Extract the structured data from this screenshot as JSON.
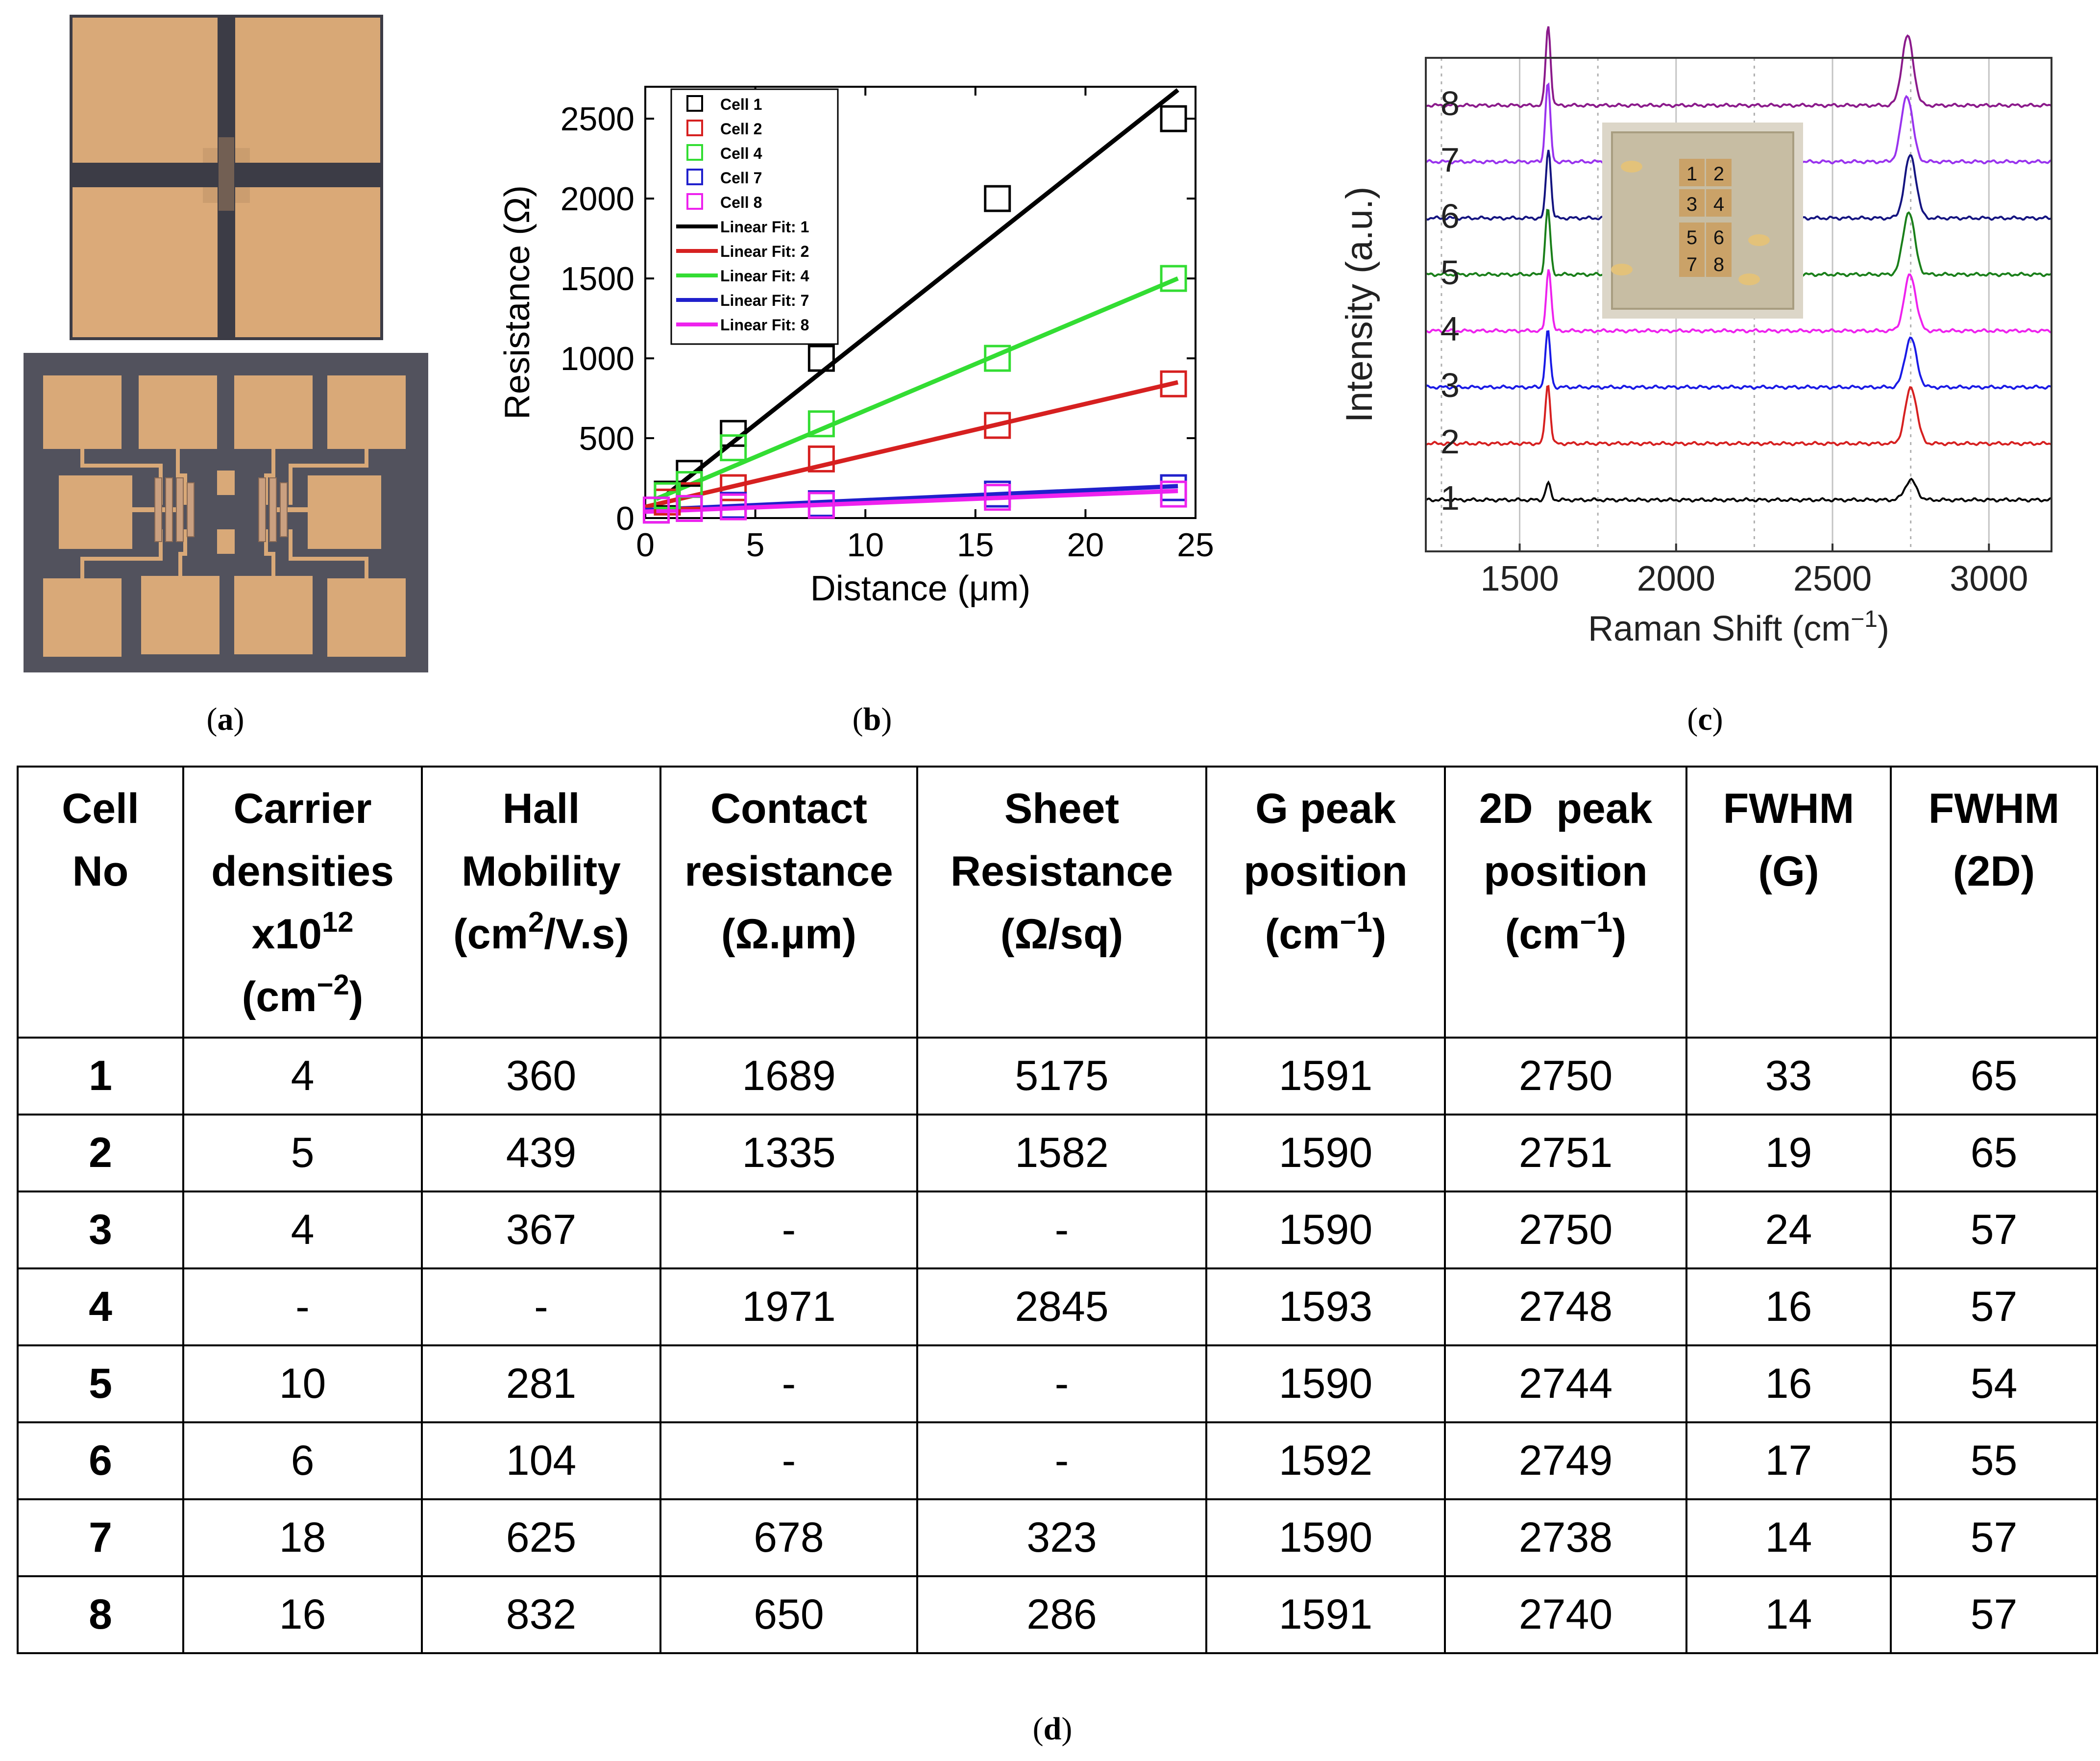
{
  "panels": {
    "a": {
      "label_paren_open": "(",
      "label_letter": "a",
      "label_paren_close": ")"
    },
    "b": {
      "label_paren_open": "(",
      "label_letter": "b",
      "label_paren_close": ")"
    },
    "c": {
      "label_paren_open": "(",
      "label_letter": "c",
      "label_paren_close": ")"
    },
    "d": {
      "label_paren_open": "(",
      "label_letter": "d",
      "label_paren_close": ")"
    }
  },
  "colors": {
    "cell1": "#000000",
    "cell2": "#d62020",
    "cell4": "#33dd33",
    "cell7": "#2020cc",
    "cell8": "#ee22ee",
    "gold": "#d9a978",
    "substrate_dark": "#4a4a55",
    "cell3": "#1a1ae6",
    "cell5": "#1a7f1a",
    "cell6": "#141480",
    "cell7_raman": "#9933ee",
    "cell8_raman": "#8b1a8b"
  },
  "chart_data": [
    {
      "type": "scatter",
      "panel": "b",
      "xlabel": "Distance (μm)",
      "ylabel": "Resistance (Ω)",
      "xlim": [
        0,
        25
      ],
      "ylim": [
        0,
        2700
      ],
      "xticks": [
        "0",
        "5",
        "10",
        "15",
        "20",
        "25"
      ],
      "yticks": [
        "0",
        "500",
        "1000",
        "1500",
        "2000",
        "2500"
      ],
      "legend_position": "top-left",
      "series": [
        {
          "name": "Cell 1",
          "fit_name": "Linear Fit: 1",
          "x": [
            1,
            2,
            4,
            8,
            16,
            24
          ],
          "y": [
            150,
            280,
            530,
            1000,
            2000,
            2500
          ],
          "fit": [
            [
              1,
              150
            ],
            [
              24.2,
              2680
            ]
          ]
        },
        {
          "name": "Cell 2",
          "fit_name": "Linear Fit: 2",
          "x": [
            1,
            2,
            4,
            8,
            16,
            24
          ],
          "y": [
            100,
            140,
            190,
            370,
            580,
            840
          ],
          "fit": [
            [
              0,
              70
            ],
            [
              24.2,
              850
            ]
          ]
        },
        {
          "name": "Cell 4",
          "fit_name": "Linear Fit: 4",
          "x": [
            1,
            2,
            4,
            8,
            16,
            24
          ],
          "y": [
            140,
            210,
            440,
            590,
            1000,
            1500
          ],
          "fit": [
            [
              0.5,
              120
            ],
            [
              24.2,
              1500
            ]
          ]
        },
        {
          "name": "Cell 7",
          "fit_name": "Linear Fit: 7",
          "x": [
            0.5,
            2,
            4,
            8,
            16,
            24
          ],
          "y": [
            50,
            60,
            80,
            90,
            150,
            190
          ],
          "fit": [
            [
              0,
              50
            ],
            [
              24.2,
              200
            ]
          ]
        },
        {
          "name": "Cell 8",
          "fit_name": "Linear Fit: 8",
          "x": [
            0.5,
            2,
            4,
            8,
            16,
            24
          ],
          "y": [
            50,
            60,
            70,
            80,
            130,
            150
          ],
          "fit": [
            [
              0,
              40
            ],
            [
              24.2,
              170
            ]
          ]
        }
      ]
    },
    {
      "type": "line",
      "panel": "c",
      "xlabel": "Raman Shift (cm",
      "xlabel_sup": "−1",
      "xlabel_end": ")",
      "ylabel": "Intensity (a.u.)",
      "xlim": [
        1200,
        3200
      ],
      "xticks": [
        "1500",
        "2000",
        "2500",
        "3000"
      ],
      "series_labels": [
        "1",
        "2",
        "3",
        "4",
        "5",
        "6",
        "7",
        "8"
      ],
      "series": [
        {
          "name": "1",
          "g_peak": 1591,
          "g_height": 0.25,
          "d2_peak": 2750,
          "d2_height": 0.3,
          "baseline": 0
        },
        {
          "name": "2",
          "g_peak": 1590,
          "g_height": 0.9,
          "d2_peak": 2751,
          "d2_height": 0.85,
          "baseline": 1
        },
        {
          "name": "3",
          "g_peak": 1590,
          "g_height": 0.85,
          "d2_peak": 2750,
          "d2_height": 0.75,
          "baseline": 2
        },
        {
          "name": "4",
          "g_peak": 1593,
          "g_height": 0.95,
          "d2_peak": 2748,
          "d2_height": 0.85,
          "baseline": 3
        },
        {
          "name": "5",
          "g_peak": 1590,
          "g_height": 1.0,
          "d2_peak": 2744,
          "d2_height": 0.95,
          "baseline": 4
        },
        {
          "name": "6",
          "g_peak": 1592,
          "g_height": 1.05,
          "d2_peak": 2749,
          "d2_height": 0.95,
          "baseline": 5
        },
        {
          "name": "7",
          "g_peak": 1590,
          "g_height": 1.2,
          "d2_peak": 2738,
          "d2_height": 1.0,
          "baseline": 6
        },
        {
          "name": "8",
          "g_peak": 1591,
          "g_height": 1.2,
          "d2_peak": 2740,
          "d2_height": 1.05,
          "baseline": 7
        }
      ],
      "inset_cell_labels": [
        "1",
        "2",
        "3",
        "4",
        "5",
        "6",
        "7",
        "8"
      ]
    }
  ],
  "table": {
    "headers": [
      {
        "lines": [
          "Cell",
          "No"
        ]
      },
      {
        "lines": [
          "Carrier",
          "densities"
        ],
        "line3": "x10",
        "line3_sup": "12",
        "line4": "(cm",
        "line4_sup": "−2",
        "line4_end": ")"
      },
      {
        "lines": [
          "Hall",
          "Mobility"
        ],
        "line3": "(cm",
        "line3_sup": "2",
        "line3_end": "/V.s)"
      },
      {
        "lines": [
          "Contact",
          "resistance",
          "(Ω.µm)"
        ]
      },
      {
        "lines": [
          "Sheet",
          "Resistance",
          "(Ω/sq)"
        ]
      },
      {
        "lines": [
          "G peak",
          "position"
        ],
        "line3": "(cm",
        "line3_sup": "−1",
        "line3_end": ")"
      },
      {
        "lines": [
          "2D  peak",
          "position"
        ],
        "line3": "(cm",
        "line3_sup": "−1",
        "line3_end": ")"
      },
      {
        "lines": [
          "FWHM",
          "(G)"
        ]
      },
      {
        "lines": [
          "FWHM",
          "(2D)"
        ]
      }
    ],
    "rows": [
      [
        "1",
        "4",
        "360",
        "1689",
        "5175",
        "1591",
        "2750",
        "33",
        "65"
      ],
      [
        "2",
        "5",
        "439",
        "1335",
        "1582",
        "1590",
        "2751",
        "19",
        "65"
      ],
      [
        "3",
        "4",
        "367",
        "-",
        "-",
        "1590",
        "2750",
        "24",
        "57"
      ],
      [
        "4",
        "-",
        "-",
        "1971",
        "2845",
        "1593",
        "2748",
        "16",
        "57"
      ],
      [
        "5",
        "10",
        "281",
        "-",
        "-",
        "1590",
        "2744",
        "16",
        "54"
      ],
      [
        "6",
        "6",
        "104",
        "-",
        "-",
        "1592",
        "2749",
        "17",
        "55"
      ],
      [
        "7",
        "18",
        "625",
        "678",
        "323",
        "1590",
        "2738",
        "14",
        "57"
      ],
      [
        "8",
        "16",
        "832",
        "650",
        "286",
        "1591",
        "2740",
        "14",
        "57"
      ]
    ]
  }
}
